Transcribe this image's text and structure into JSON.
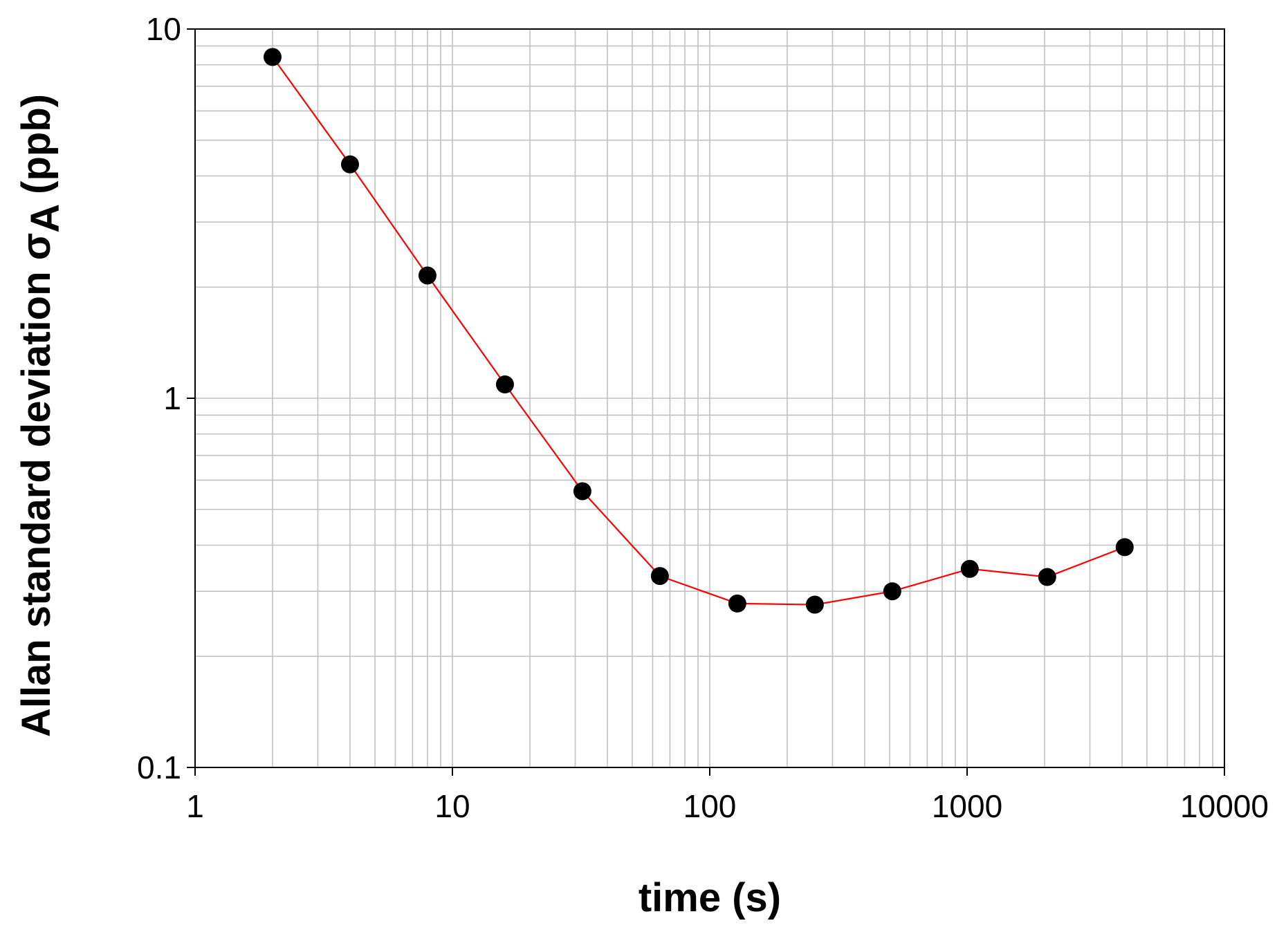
{
  "chart_data": {
    "type": "line",
    "xlabel": "time (s)",
    "ylabel_main": "Allan standard deviation σ",
    "ylabel_sub": "A",
    "ylabel_unit": " (ppb)",
    "x_scale": "log",
    "y_scale": "log",
    "xlim": [
      1,
      10000
    ],
    "ylim": [
      0.1,
      10
    ],
    "x_ticks": [
      1,
      10,
      100,
      1000,
      10000
    ],
    "x_tick_labels": [
      "1",
      "10",
      "100",
      "1000",
      "10000"
    ],
    "y_ticks": [
      0.1,
      1,
      10
    ],
    "y_tick_labels": [
      "0.1",
      "1",
      "10"
    ],
    "grid": true,
    "series": [
      {
        "x": [
          2,
          4,
          8,
          16,
          32,
          64,
          128,
          256,
          512,
          1024,
          2048,
          4096
        ],
        "y": [
          8.4,
          4.3,
          2.15,
          1.09,
          0.56,
          0.33,
          0.278,
          0.276,
          0.3,
          0.345,
          0.328,
          0.395
        ]
      }
    ],
    "line_color": "#ff0000",
    "marker_color": "#000000",
    "grid_color": "#c0c0c0"
  }
}
